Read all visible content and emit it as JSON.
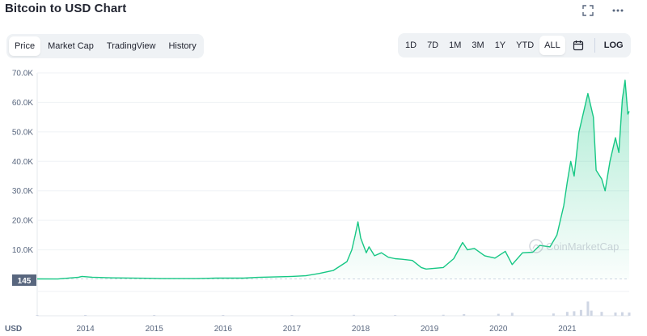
{
  "header": {
    "title": "Bitcoin to USD Chart",
    "expand_icon": "expand-icon",
    "more_icon": "more-icon"
  },
  "tabs": [
    {
      "label": "Price",
      "active": true
    },
    {
      "label": "Market Cap",
      "active": false
    },
    {
      "label": "TradingView",
      "active": false
    },
    {
      "label": "History",
      "active": false
    }
  ],
  "ranges": [
    {
      "label": "1D",
      "active": false
    },
    {
      "label": "7D",
      "active": false
    },
    {
      "label": "1M",
      "active": false
    },
    {
      "label": "3M",
      "active": false
    },
    {
      "label": "1Y",
      "active": false
    },
    {
      "label": "YTD",
      "active": false
    },
    {
      "label": "ALL",
      "active": true
    }
  ],
  "calendar_icon": "calendar-icon",
  "log_label": "LOG",
  "watermark": "CoinMarketCap",
  "colors": {
    "line": "#16c784",
    "area_top": "#16c784",
    "text": "#58667e",
    "volume": "#cfd6e4",
    "price_tag": "#58667e"
  },
  "chart_data": {
    "type": "area",
    "title": "Bitcoin to USD Chart",
    "currency_label": "USD",
    "current_price_tag": "145",
    "price_tag_value": 145,
    "ylim": [
      0,
      70000
    ],
    "yticks": [
      {
        "label": "70.0K",
        "value": 70000
      },
      {
        "label": "60.0K",
        "value": 60000
      },
      {
        "label": "50.0K",
        "value": 50000
      },
      {
        "label": "40.0K",
        "value": 40000
      },
      {
        "label": "30.0K",
        "value": 30000
      },
      {
        "label": "20.0K",
        "value": 20000
      },
      {
        "label": "10.0K",
        "value": 10000
      }
    ],
    "xlim": [
      2013.3,
      2021.9
    ],
    "xticks": [
      {
        "label": "2014",
        "value": 2014
      },
      {
        "label": "2015",
        "value": 2015
      },
      {
        "label": "2016",
        "value": 2016
      },
      {
        "label": "2017",
        "value": 2017
      },
      {
        "label": "2018",
        "value": 2018
      },
      {
        "label": "2019",
        "value": 2019
      },
      {
        "label": "2020",
        "value": 2020
      },
      {
        "label": "2021",
        "value": 2021
      }
    ],
    "grid": true,
    "series": [
      {
        "points": [
          [
            2013.3,
            140
          ],
          [
            2013.6,
            110
          ],
          [
            2013.9,
            700
          ],
          [
            2013.95,
            1000
          ],
          [
            2014.1,
            700
          ],
          [
            2014.4,
            500
          ],
          [
            2014.9,
            350
          ],
          [
            2015.1,
            240
          ],
          [
            2015.6,
            260
          ],
          [
            2015.9,
            400
          ],
          [
            2016.3,
            420
          ],
          [
            2016.5,
            650
          ],
          [
            2016.9,
            900
          ],
          [
            2017.0,
            1000
          ],
          [
            2017.2,
            1200
          ],
          [
            2017.4,
            2000
          ],
          [
            2017.6,
            3000
          ],
          [
            2017.7,
            4500
          ],
          [
            2017.8,
            6000
          ],
          [
            2017.87,
            10000
          ],
          [
            2017.92,
            15000
          ],
          [
            2017.96,
            19500
          ],
          [
            2018.0,
            14000
          ],
          [
            2018.08,
            9000
          ],
          [
            2018.12,
            11000
          ],
          [
            2018.2,
            8000
          ],
          [
            2018.3,
            9000
          ],
          [
            2018.4,
            7500
          ],
          [
            2018.5,
            7000
          ],
          [
            2018.6,
            6800
          ],
          [
            2018.75,
            6400
          ],
          [
            2018.88,
            4000
          ],
          [
            2018.95,
            3500
          ],
          [
            2019.2,
            4000
          ],
          [
            2019.35,
            7000
          ],
          [
            2019.48,
            12500
          ],
          [
            2019.55,
            10000
          ],
          [
            2019.65,
            10500
          ],
          [
            2019.8,
            8000
          ],
          [
            2019.95,
            7200
          ],
          [
            2020.1,
            9500
          ],
          [
            2020.2,
            5000
          ],
          [
            2020.35,
            9000
          ],
          [
            2020.5,
            9200
          ],
          [
            2020.6,
            11500
          ],
          [
            2020.75,
            11000
          ],
          [
            2020.85,
            15000
          ],
          [
            2020.95,
            25000
          ],
          [
            2021.0,
            33000
          ],
          [
            2021.05,
            40000
          ],
          [
            2021.1,
            35000
          ],
          [
            2021.17,
            50000
          ],
          [
            2021.25,
            58000
          ],
          [
            2021.3,
            63000
          ],
          [
            2021.38,
            55000
          ],
          [
            2021.42,
            37000
          ],
          [
            2021.5,
            34000
          ],
          [
            2021.55,
            30000
          ],
          [
            2021.62,
            40000
          ],
          [
            2021.7,
            48000
          ],
          [
            2021.75,
            43000
          ],
          [
            2021.8,
            61000
          ],
          [
            2021.84,
            67500
          ],
          [
            2021.88,
            56000
          ],
          [
            2021.9,
            57000
          ]
        ]
      }
    ],
    "volume": [
      [
        2013.3,
        0.3
      ],
      [
        2014.0,
        0.4
      ],
      [
        2015.0,
        0.3
      ],
      [
        2016.0,
        0.4
      ],
      [
        2017.0,
        0.6
      ],
      [
        2017.9,
        1.5
      ],
      [
        2018.5,
        1.2
      ],
      [
        2019.2,
        1.6
      ],
      [
        2019.5,
        2.5
      ],
      [
        2020.0,
        3.0
      ],
      [
        2020.2,
        4.5
      ],
      [
        2020.8,
        3.5
      ],
      [
        2021.0,
        6.0
      ],
      [
        2021.1,
        7.0
      ],
      [
        2021.2,
        9.0
      ],
      [
        2021.3,
        22.0
      ],
      [
        2021.35,
        8.0
      ],
      [
        2021.5,
        6.0
      ],
      [
        2021.7,
        5.0
      ],
      [
        2021.8,
        5.5
      ],
      [
        2021.9,
        5.0
      ]
    ],
    "volume_max": 25
  }
}
